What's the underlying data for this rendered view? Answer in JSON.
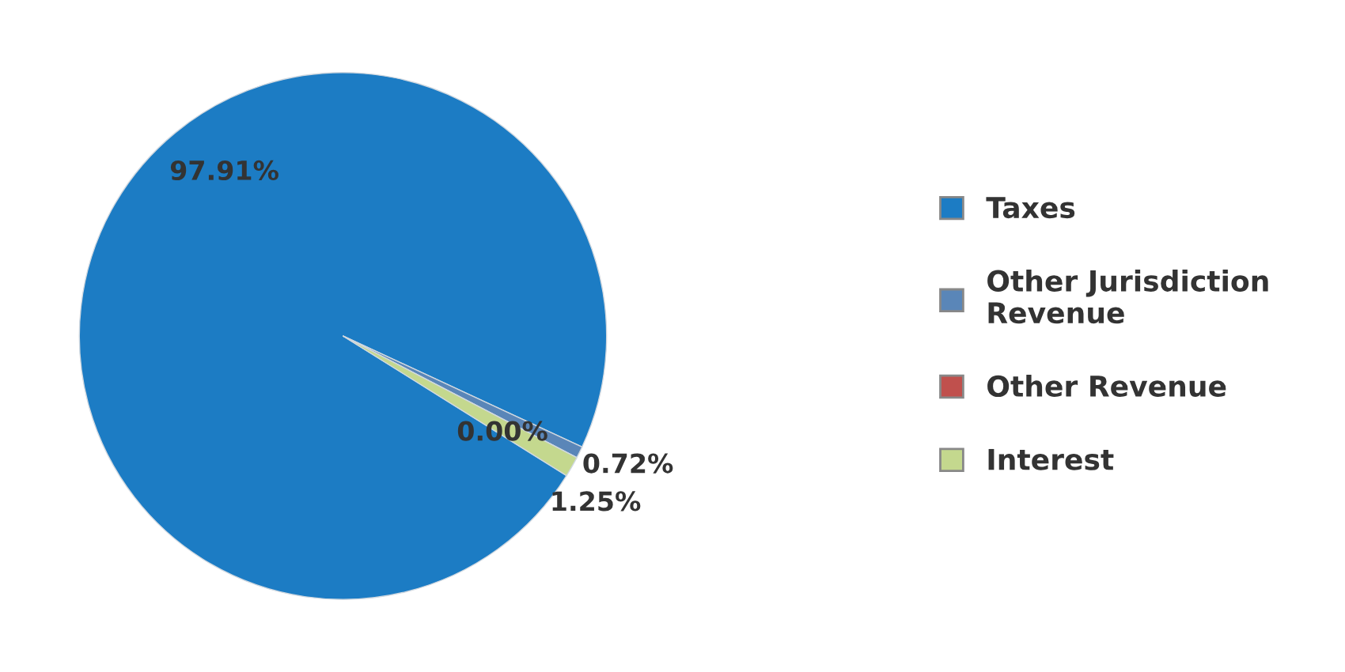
{
  "chart_data": {
    "type": "pie",
    "categories": [
      "Taxes",
      "Other Jurisdiction Revenue",
      "Other Revenue",
      "Interest"
    ],
    "values": [
      97.91,
      0.72,
      0.0,
      1.25
    ],
    "colors": [
      "#1c7cc4",
      "#5a86b8",
      "#c0504d",
      "#c4d88e"
    ],
    "value_labels": [
      "97.91%",
      "0.72%",
      "0.00%",
      "1.25%"
    ],
    "legend": "right"
  }
}
